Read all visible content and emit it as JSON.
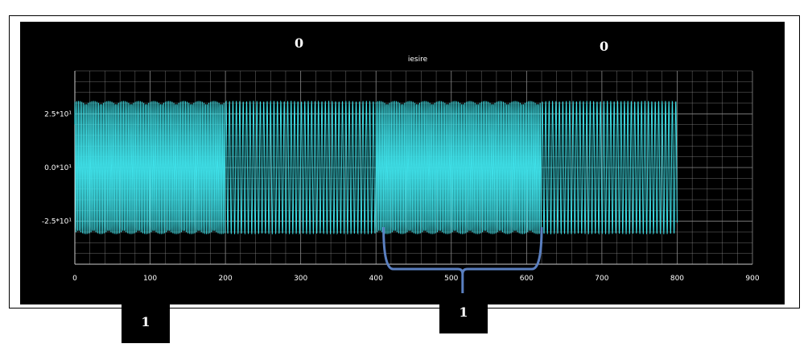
{
  "annotations": {
    "top_left": "0",
    "top_right": "0",
    "bottom_left": "1",
    "bottom_right": "1"
  },
  "chart_data": {
    "type": "line",
    "title": "iesire",
    "xlabel": "",
    "ylabel": "",
    "xlim": [
      0,
      900
    ],
    "ylim": [
      -4.5,
      4.5
    ],
    "x_ticks": [
      0,
      100,
      200,
      300,
      400,
      500,
      600,
      700,
      800,
      900
    ],
    "x_tick_labels": [
      "0",
      "100",
      "200",
      "300",
      "400",
      "500",
      "600",
      "700",
      "800",
      "900"
    ],
    "y_ticks": [
      -2.5,
      0,
      2.5
    ],
    "y_tick_labels": [
      "-2.5*10¹",
      "0.0*10¹",
      "2.5*10¹"
    ],
    "grid": true,
    "series": [
      {
        "color": "#3ee0e8",
        "amplitude": 3.1,
        "x_range": [
          0,
          800
        ],
        "segments": [
          {
            "from": 0,
            "to": 200,
            "cycles_per_unit": 0.45
          },
          {
            "from": 200,
            "to": 400,
            "cycles_per_unit": 0.22
          },
          {
            "from": 400,
            "to": 620,
            "cycles_per_unit": 0.45
          },
          {
            "from": 620,
            "to": 800,
            "cycles_per_unit": 0.22
          }
        ]
      }
    ],
    "brace": {
      "from": 410,
      "to": 620,
      "color": "#5a7fc0"
    }
  },
  "colors": {
    "background": "#000000",
    "grid": "#8a8a8a",
    "signal": "#3ee0e8",
    "text": "#ffffff"
  }
}
